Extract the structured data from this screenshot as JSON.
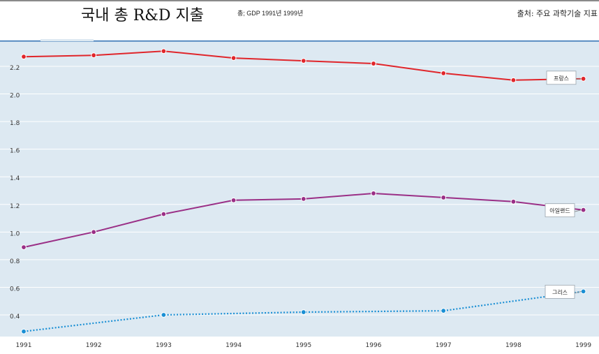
{
  "header": {
    "title": "국내 총 R&D 지출",
    "subtitle": "총; GDP 1991년 1999년",
    "source": "출처: 주요 과학기술 지표"
  },
  "chart_data": {
    "type": "line",
    "categories": [
      "1991",
      "1992",
      "1993",
      "1994",
      "1995",
      "1996",
      "1997",
      "1998",
      "1999"
    ],
    "ylim": [
      0.3,
      2.4
    ],
    "yticks": [
      0.4,
      0.6,
      0.8,
      1.0,
      1.2,
      1.4,
      1.6,
      1.8,
      2.0,
      2.2
    ],
    "ytick_labels": [
      "0.4",
      "0.6",
      "0.8",
      "1.0",
      "1.2",
      "1.4",
      "1.6",
      "1.8",
      "2.0",
      "2.2"
    ],
    "grid": true,
    "series": [
      {
        "name": "프랑스",
        "color": "#e0262b",
        "dash": "solid",
        "values": [
          2.27,
          2.28,
          2.31,
          2.26,
          2.24,
          2.22,
          2.15,
          2.1,
          2.11
        ]
      },
      {
        "name": "아일랜드",
        "color": "#9a2f86",
        "dash": "solid",
        "values": [
          0.89,
          1.0,
          1.13,
          1.23,
          1.24,
          1.28,
          1.25,
          1.22,
          1.16
        ]
      },
      {
        "name": "그리스",
        "color": "#1a8fd4",
        "dash": "dotted",
        "values": [
          0.28,
          null,
          0.4,
          null,
          0.42,
          null,
          0.43,
          null,
          0.57
        ]
      }
    ]
  }
}
